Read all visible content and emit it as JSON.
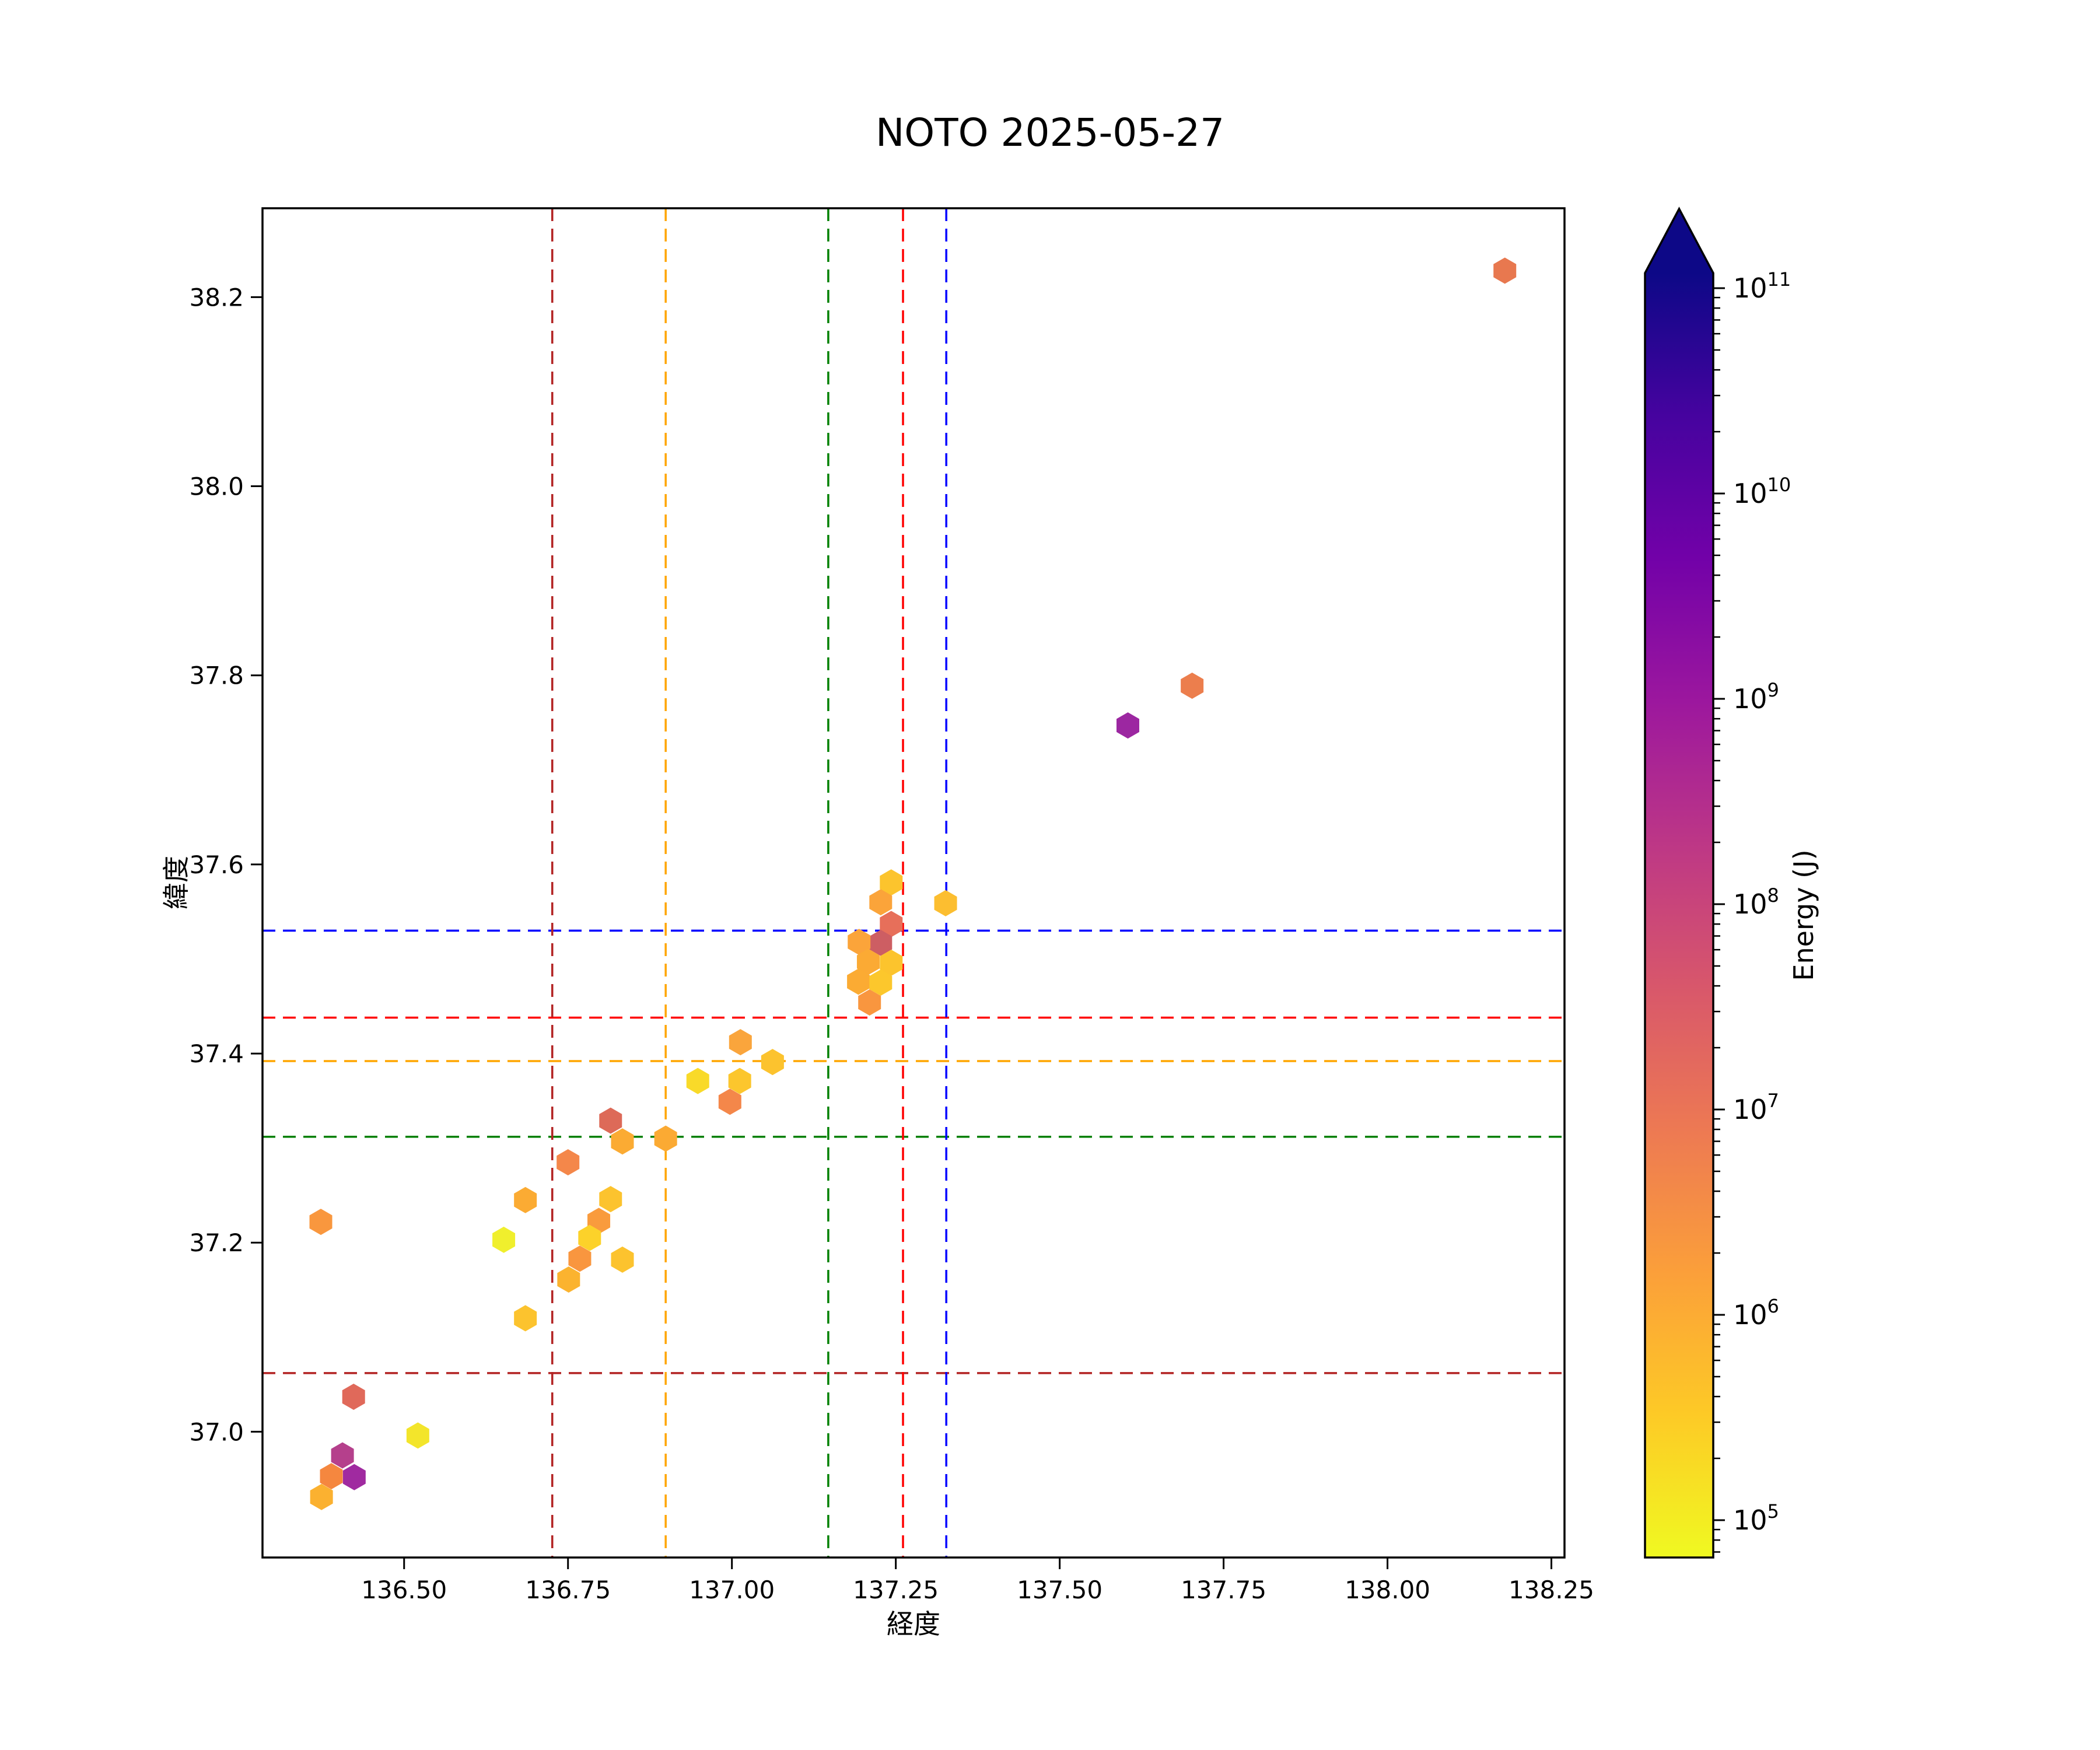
{
  "title": "NOTO 2025-05-27",
  "chart_data": {
    "type": "scatter",
    "marker": "hexagon",
    "xlabel": "経度",
    "ylabel": "緯度",
    "xlim": [
      136.284,
      138.27
    ],
    "ylim": [
      36.867,
      38.294
    ],
    "grid": false,
    "xticks": [
      {
        "value": 136.5,
        "label": "136.50"
      },
      {
        "value": 136.75,
        "label": "136.75"
      },
      {
        "value": 137.0,
        "label": "137.00"
      },
      {
        "value": 137.25,
        "label": "137.25"
      },
      {
        "value": 137.5,
        "label": "137.50"
      },
      {
        "value": 137.75,
        "label": "137.75"
      },
      {
        "value": 138.0,
        "label": "138.00"
      },
      {
        "value": 138.25,
        "label": "138.25"
      }
    ],
    "yticks": [
      {
        "value": 38.2,
        "label": "38.2"
      },
      {
        "value": 38.0,
        "label": "38.0"
      },
      {
        "value": 37.8,
        "label": "37.8"
      },
      {
        "value": 37.6,
        "label": "37.6"
      },
      {
        "value": 37.4,
        "label": "37.4"
      },
      {
        "value": 37.2,
        "label": "37.2"
      },
      {
        "value": 37.0,
        "label": "37.0"
      }
    ],
    "vlines": [
      {
        "lon": 136.726,
        "color": "#b22222",
        "style": "dashed"
      },
      {
        "lon": 136.899,
        "color": "#ffa500",
        "style": "dashed"
      },
      {
        "lon": 137.147,
        "color": "#008000",
        "style": "dashed"
      },
      {
        "lon": 137.261,
        "color": "#ff0000",
        "style": "dashed"
      },
      {
        "lon": 137.327,
        "color": "#0000ff",
        "style": "dashed"
      }
    ],
    "hlines": [
      {
        "lat": 37.53,
        "color": "#0000ff",
        "style": "dashed"
      },
      {
        "lat": 37.438,
        "color": "#ff0000",
        "style": "dashed"
      },
      {
        "lat": 37.392,
        "color": "#ffa500",
        "style": "dashed"
      },
      {
        "lat": 37.312,
        "color": "#008000",
        "style": "dashed"
      },
      {
        "lat": 37.062,
        "color": "#b22222",
        "style": "dashed"
      }
    ],
    "points": [
      {
        "lon": 138.179,
        "lat": 38.228,
        "color": "#e8784f",
        "energy": 7500000.0
      },
      {
        "lon": 137.702,
        "lat": 37.789,
        "color": "#ec7e4d",
        "energy": 6500000.0
      },
      {
        "lon": 137.604,
        "lat": 37.747,
        "color": "#9c27a1",
        "energy": 1000000000.0
      },
      {
        "lon": 137.243,
        "lat": 37.581,
        "color": "#fcc42d",
        "energy": 500000.0
      },
      {
        "lon": 137.227,
        "lat": 37.56,
        "color": "#fba43a",
        "energy": 1500000.0
      },
      {
        "lon": 137.243,
        "lat": 37.537,
        "color": "#e76f5a",
        "energy": 10000000.0
      },
      {
        "lon": 137.227,
        "lat": 37.517,
        "color": "#cd5e63",
        "energy": 35000000.0
      },
      {
        "lon": 137.194,
        "lat": 37.518,
        "color": "#fba43a",
        "energy": 1500000.0
      },
      {
        "lon": 137.208,
        "lat": 37.497,
        "color": "#fbaa34",
        "energy": 1100000.0
      },
      {
        "lon": 137.243,
        "lat": 37.496,
        "color": "#fcc42d",
        "energy": 500000.0
      },
      {
        "lon": 137.193,
        "lat": 37.476,
        "color": "#fbab33",
        "energy": 1100000.0
      },
      {
        "lon": 137.227,
        "lat": 37.475,
        "color": "#fcc72c",
        "energy": 430000.0
      },
      {
        "lon": 137.21,
        "lat": 37.454,
        "color": "#f9963f",
        "energy": 2800000.0
      },
      {
        "lon": 137.326,
        "lat": 37.559,
        "color": "#fcbe30",
        "energy": 650000.0
      },
      {
        "lon": 137.013,
        "lat": 37.412,
        "color": "#faa53c",
        "energy": 1400000.0
      },
      {
        "lon": 137.062,
        "lat": 37.391,
        "color": "#fcc32e",
        "energy": 550000.0
      },
      {
        "lon": 136.948,
        "lat": 37.371,
        "color": "#f9da29",
        "energy": 240000.0
      },
      {
        "lon": 137.012,
        "lat": 37.371,
        "color": "#fcc62d",
        "energy": 460000.0
      },
      {
        "lon": 136.997,
        "lat": 37.349,
        "color": "#f4874a",
        "energy": 4500000.0
      },
      {
        "lon": 136.899,
        "lat": 37.31,
        "color": "#fbaa33",
        "energy": 1100000.0
      },
      {
        "lon": 136.815,
        "lat": 37.329,
        "color": "#dd6a58",
        "energy": 15000000.0
      },
      {
        "lon": 136.833,
        "lat": 37.307,
        "color": "#fbab33",
        "energy": 1100000.0
      },
      {
        "lon": 136.75,
        "lat": 37.285,
        "color": "#f4874a",
        "energy": 4500000.0
      },
      {
        "lon": 136.685,
        "lat": 37.245,
        "color": "#fbab33",
        "energy": 1100000.0
      },
      {
        "lon": 136.815,
        "lat": 37.246,
        "color": "#fcc32e",
        "energy": 550000.0
      },
      {
        "lon": 136.797,
        "lat": 37.223,
        "color": "#f99b3d",
        "energy": 2200000.0
      },
      {
        "lon": 136.652,
        "lat": 37.203,
        "color": "#f0ef2d",
        "energy": 120000.0
      },
      {
        "lon": 136.783,
        "lat": 37.205,
        "color": "#fcd22a",
        "energy": 320000.0
      },
      {
        "lon": 136.768,
        "lat": 37.183,
        "color": "#f9963f",
        "energy": 2800000.0
      },
      {
        "lon": 136.833,
        "lat": 37.182,
        "color": "#fcc32e",
        "energy": 550000.0
      },
      {
        "lon": 136.751,
        "lat": 37.161,
        "color": "#fbb32f",
        "energy": 850000.0
      },
      {
        "lon": 136.685,
        "lat": 37.12,
        "color": "#fcc32e",
        "energy": 550000.0
      },
      {
        "lon": 136.373,
        "lat": 37.222,
        "color": "#f9973e",
        "energy": 2800000.0
      },
      {
        "lon": 136.423,
        "lat": 37.037,
        "color": "#e0695a",
        "energy": 13000000.0
      },
      {
        "lon": 136.521,
        "lat": 36.996,
        "color": "#f3e52b",
        "energy": 160000.0
      },
      {
        "lon": 136.406,
        "lat": 36.975,
        "color": "#b5408c",
        "energy": 250000000.0
      },
      {
        "lon": 136.389,
        "lat": 36.953,
        "color": "#f5873f",
        "energy": 3800000.0
      },
      {
        "lon": 136.424,
        "lat": 36.952,
        "color": "#a02aa0",
        "energy": 800000000.0
      },
      {
        "lon": 136.374,
        "lat": 36.931,
        "color": "#fbb130",
        "energy": 900000.0
      }
    ],
    "colorbar": {
      "label": "Energy (J)",
      "scale": "log",
      "extend": "max",
      "colormap": "plasma_r",
      "exponents": [
        11,
        10,
        9,
        8,
        7,
        6,
        5
      ],
      "range_exp": [
        4.82,
        11.07
      ],
      "gradient_stops": [
        "#0d0887",
        "#46039f",
        "#7201a8",
        "#9c179e",
        "#bd3786",
        "#d8576b",
        "#ed7953",
        "#fb9f3a",
        "#fdca26",
        "#f0f921"
      ]
    }
  }
}
